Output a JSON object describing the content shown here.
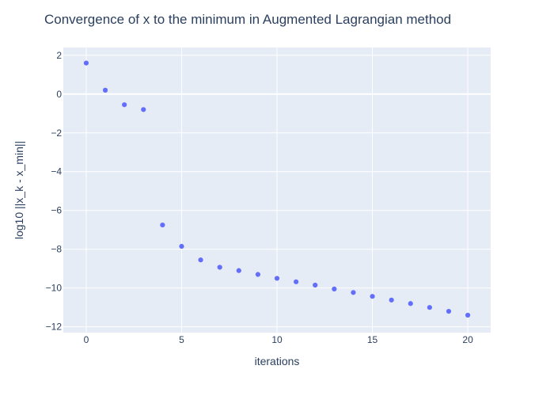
{
  "chart_data": {
    "type": "scatter",
    "title": "Convergence of x to the minimum in Augmented Lagrangian method",
    "xlabel": "iterations",
    "ylabel": "log10 ||x_k - x_min||",
    "xlim": [
      -1.2,
      21.2
    ],
    "ylim": [
      -12.3,
      2.4
    ],
    "xticks": [
      0,
      5,
      10,
      15,
      20
    ],
    "yticks": [
      2,
      0,
      -2,
      -4,
      -6,
      -8,
      -10,
      -12
    ],
    "ytick_labels": [
      "2",
      "0",
      "−2",
      "−4",
      "−6",
      "−8",
      "−10",
      "−12"
    ],
    "grid": true,
    "legend": "none",
    "series": [
      {
        "x": [
          0,
          1,
          2,
          3,
          4,
          5,
          6,
          7,
          8,
          9,
          10,
          11,
          12,
          13,
          14,
          15,
          16,
          17,
          18,
          19,
          20
        ],
        "y": [
          1.6,
          0.2,
          -0.55,
          -0.8,
          -6.75,
          -7.85,
          -8.55,
          -8.93,
          -9.1,
          -9.3,
          -9.5,
          -9.68,
          -9.85,
          -10.05,
          -10.23,
          -10.43,
          -10.62,
          -10.8,
          -11.0,
          -11.2,
          -11.4
        ],
        "color": "#636efa"
      }
    ],
    "colors": {
      "plot_background": "#e5ecf6",
      "grid": "#ffffff",
      "text": "#2a3f5f",
      "marker": "#636efa"
    }
  }
}
